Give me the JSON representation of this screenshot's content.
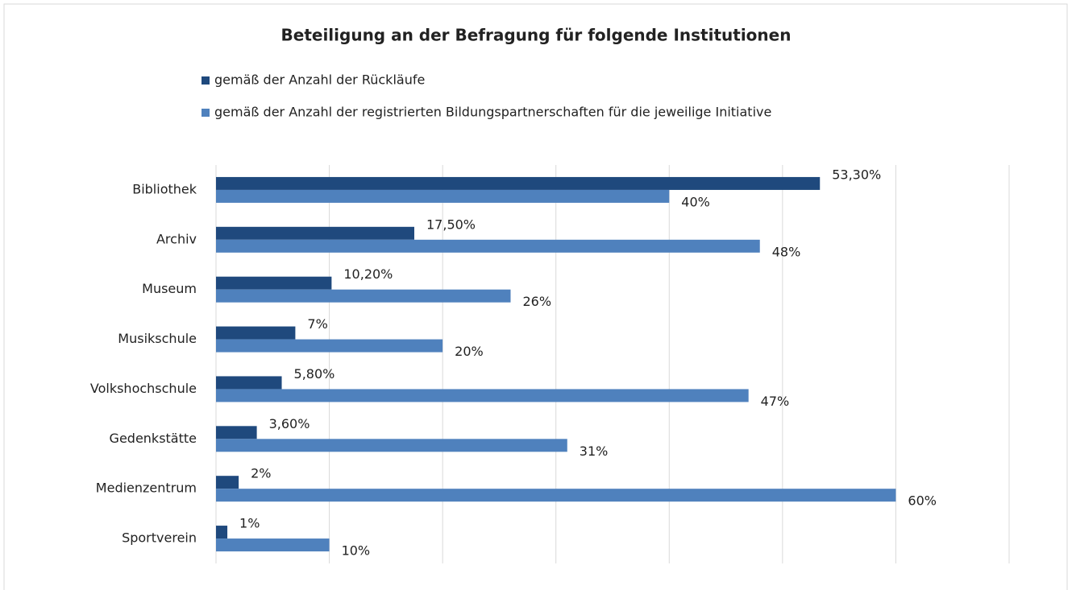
{
  "chart_data": {
    "type": "barh",
    "title": "Beteiligung an der Befragung für folgende Institutionen",
    "categories": [
      "Bibliothek",
      "Archiv",
      "Museum",
      "Musikschule",
      "Volkshochschule",
      "Gedenkstätte",
      "Medienzentrum",
      "Sportverein"
    ],
    "series": [
      {
        "name": "gemäß der Anzahl der Rückläufe",
        "color": "#1f497d",
        "values": [
          53.3,
          17.5,
          10.2,
          7,
          5.8,
          3.6,
          2,
          1
        ],
        "value_labels": [
          "53,30%",
          "17,50%",
          "10,20%",
          "7%",
          "5,80%",
          "3,60%",
          "2%",
          "1%"
        ]
      },
      {
        "name": "gemäß der Anzahl der registrierten Bildungspartnerschaften für die jeweilige Initiative",
        "color": "#4f81bd",
        "values": [
          40,
          48,
          26,
          20,
          47,
          31,
          60,
          10
        ],
        "value_labels": [
          "40%",
          "48%",
          "26%",
          "20%",
          "47%",
          "31%",
          "60%",
          "10%"
        ]
      }
    ],
    "xlim": [
      0,
      70
    ],
    "xticks": [
      0,
      10,
      20,
      30,
      40,
      50,
      60,
      70
    ],
    "grid": true
  }
}
